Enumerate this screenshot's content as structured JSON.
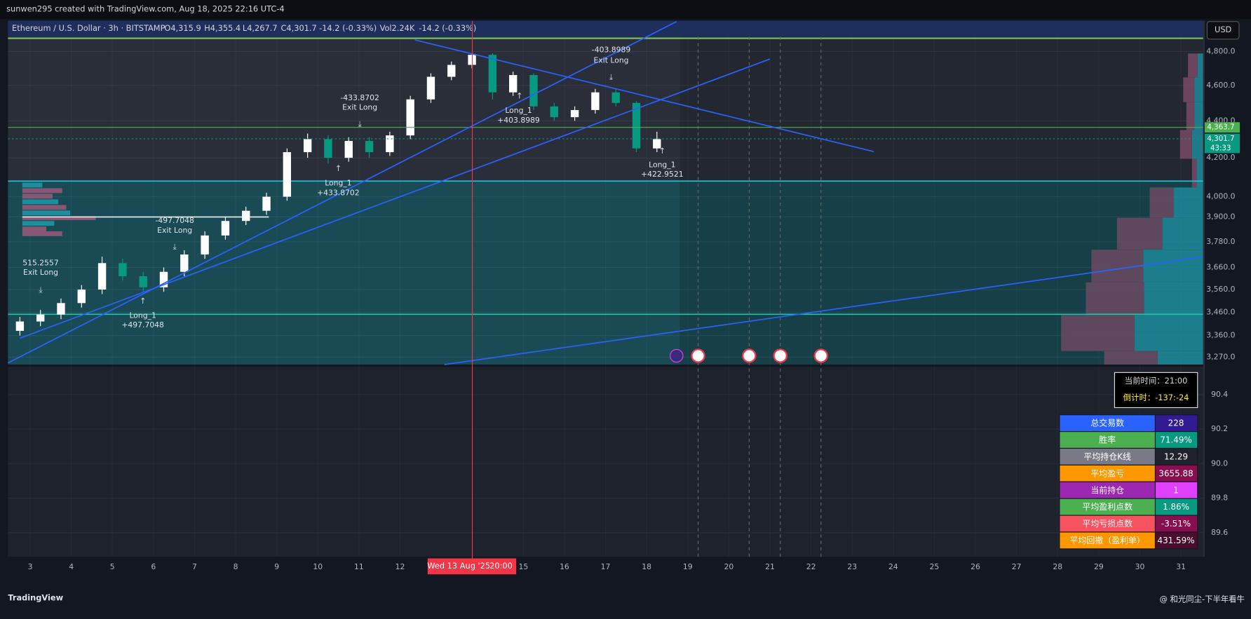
{
  "header": {
    "attribution": "sunwen295 created with TradingView.com, Aug 18, 2025 22:16 UTC-4",
    "symbol": "Ethereum / U.S. Dollar · 3h · BITSTAMP",
    "ohlc": [
      "O4,315.9",
      "H4,355.4",
      "L4,267.7",
      "C4,301.7",
      "-14.2 (-0.33%)"
    ],
    "volume": "Vol2.24K",
    "volume_change": "-14.2 (-0.33%)",
    "currency": "USD"
  },
  "chart": {
    "type": "candlestick",
    "log_scale": true,
    "grid": true,
    "xlim": [
      2.46,
      31.54
    ],
    "xticks": [
      3,
      4,
      5,
      6,
      7,
      8,
      9,
      10,
      11,
      12,
      15,
      16,
      17,
      18,
      19,
      20,
      21,
      22,
      23,
      24,
      25,
      26,
      27,
      28,
      29,
      30,
      31
    ],
    "ylim": [
      3240,
      4890
    ],
    "yticks": [
      {
        "value": 4800,
        "label": "4,800.0"
      },
      {
        "value": 4600,
        "label": "4,600.0"
      },
      {
        "value": 4400,
        "label": "4,400.0"
      },
      {
        "value": 4200,
        "label": "4,200.0"
      },
      {
        "value": 4000,
        "label": "4,000.0"
      },
      {
        "value": 3900,
        "label": "3,900.0"
      },
      {
        "value": 3780,
        "label": "3,780.0"
      },
      {
        "value": 3660,
        "label": "3,660.0"
      },
      {
        "value": 3560,
        "label": "3,560.0"
      },
      {
        "value": 3460,
        "label": "3,460.0"
      },
      {
        "value": 3360,
        "label": "3,360.0"
      },
      {
        "value": 3270,
        "label": "3,270.0"
      }
    ],
    "y2lim": [
      89.46,
      90.56
    ],
    "y2ticks": [
      90.4,
      90.2,
      {
        "value": 90,
        "label": "90.0"
      },
      89.8,
      89.6
    ],
    "up_color": "#ffffff",
    "down_color": "#089981",
    "candles": [
      {
        "x": 2.75,
        "open": 3380,
        "high": 3440,
        "low": 3360,
        "close": 3420
      },
      {
        "x": 3.25,
        "open": 3420,
        "high": 3470,
        "low": 3400,
        "close": 3450
      },
      {
        "x": 3.75,
        "open": 3450,
        "high": 3520,
        "low": 3430,
        "close": 3500
      },
      {
        "x": 4.25,
        "open": 3500,
        "high": 3580,
        "low": 3480,
        "close": 3560
      },
      {
        "x": 4.75,
        "open": 3560,
        "high": 3710,
        "low": 3540,
        "close": 3680
      },
      {
        "x": 5.25,
        "open": 3680,
        "high": 3700,
        "low": 3600,
        "close": 3620
      },
      {
        "x": 5.75,
        "open": 3620,
        "high": 3640,
        "low": 3550,
        "close": 3570
      },
      {
        "x": 6.25,
        "open": 3570,
        "high": 3660,
        "low": 3550,
        "close": 3640
      },
      {
        "x": 6.75,
        "open": 3640,
        "high": 3740,
        "low": 3620,
        "close": 3720
      },
      {
        "x": 7.25,
        "open": 3720,
        "high": 3830,
        "low": 3700,
        "close": 3810
      },
      {
        "x": 7.75,
        "open": 3810,
        "high": 3900,
        "low": 3790,
        "close": 3880
      },
      {
        "x": 8.25,
        "open": 3880,
        "high": 3950,
        "low": 3860,
        "close": 3930
      },
      {
        "x": 8.75,
        "open": 3930,
        "high": 4020,
        "low": 3910,
        "close": 4000
      },
      {
        "x": 9.25,
        "open": 4000,
        "high": 4250,
        "low": 3980,
        "close": 4230
      },
      {
        "x": 9.75,
        "open": 4230,
        "high": 4330,
        "low": 4200,
        "close": 4300
      },
      {
        "x": 10.25,
        "open": 4300,
        "high": 4320,
        "low": 4170,
        "close": 4200
      },
      {
        "x": 10.75,
        "open": 4200,
        "high": 4310,
        "low": 4180,
        "close": 4290
      },
      {
        "x": 11.25,
        "open": 4290,
        "high": 4310,
        "low": 4200,
        "close": 4230
      },
      {
        "x": 11.75,
        "open": 4230,
        "high": 4340,
        "low": 4210,
        "close": 4320
      },
      {
        "x": 12.25,
        "open": 4320,
        "high": 4540,
        "low": 4300,
        "close": 4520
      },
      {
        "x": 12.75,
        "open": 4520,
        "high": 4670,
        "low": 4500,
        "close": 4650
      },
      {
        "x": 13.25,
        "open": 4650,
        "high": 4740,
        "low": 4630,
        "close": 4720
      },
      {
        "x": 13.75,
        "open": 4720,
        "high": 4790,
        "low": 4700,
        "close": 4780
      },
      {
        "x": 14.25,
        "open": 4780,
        "high": 4790,
        "low": 4520,
        "close": 4560
      },
      {
        "x": 14.75,
        "open": 4560,
        "high": 4680,
        "low": 4540,
        "close": 4660
      },
      {
        "x": 15.25,
        "open": 4660,
        "high": 4670,
        "low": 4460,
        "close": 4480
      },
      {
        "x": 15.75,
        "open": 4480,
        "high": 4500,
        "low": 4400,
        "close": 4420
      },
      {
        "x": 16.25,
        "open": 4420,
        "high": 4480,
        "low": 4400,
        "close": 4460
      },
      {
        "x": 16.75,
        "open": 4460,
        "high": 4580,
        "low": 4440,
        "close": 4560
      },
      {
        "x": 17.25,
        "open": 4560,
        "high": 4580,
        "low": 4480,
        "close": 4500
      },
      {
        "x": 17.75,
        "open": 4500,
        "high": 4510,
        "low": 4230,
        "close": 4250
      },
      {
        "x": 18.25,
        "open": 4250,
        "high": 4340,
        "low": 4230,
        "close": 4300
      }
    ],
    "price_lines": [
      {
        "value": 4363.7,
        "label": "4,363.7",
        "color": "#4caf50"
      },
      {
        "value": 4301.7,
        "label": "4,301.7",
        "color": "#089981"
      }
    ],
    "countdown": "43:33",
    "crosshair_date": "Wed 13 Aug '25",
    "crosshair_time": "20:00",
    "annotations": [
      {
        "value": "-403.8989",
        "label": "Exit Long"
      },
      {
        "value": "-433.8702",
        "label": "Exit Long"
      },
      {
        "value": "-497.7048",
        "label": "Exit Long"
      },
      {
        "value": "515.2557",
        "label": "Exit Long"
      },
      {
        "label": "Long_1",
        "value": "+403.8989"
      },
      {
        "label": "Long_1",
        "value": "+433.8702"
      },
      {
        "label": "Long_1",
        "value": "+497.7048"
      },
      {
        "label": "Long_1",
        "value": "+422.9521"
      }
    ]
  },
  "clock": {
    "time": "当前时间：21:00",
    "countdown": "倒计时：-137:-24"
  },
  "stats": {
    "rows": [
      {
        "label": "总交易数",
        "value": "228",
        "label_color": "#2962ff",
        "value_color": "#311b92"
      },
      {
        "label": "胜率",
        "value": "71.49%",
        "label_color": "#4caf50",
        "value_color": "#089981"
      },
      {
        "label": "平均持仓K线",
        "value": "12.29",
        "label_color": "#787b86",
        "value_color": "#1e222d"
      },
      {
        "label": "平均盈亏",
        "value": "3655.88",
        "label_color": "#ff9800",
        "value_color": "#880e4f"
      },
      {
        "label": "当前持仓",
        "value": "1",
        "label_color": "#9c27b0",
        "value_color": "#e040fb"
      },
      {
        "label": "平均盈利点数",
        "value": "1.86%",
        "label_color": "#4caf50",
        "value_color": "#089981"
      },
      {
        "label": "平均亏损点数",
        "value": "-3.51%",
        "label_color": "#f7525f",
        "value_color": "#880e4f"
      },
      {
        "label": "平均回撤（盈利单）",
        "value": "431.59%",
        "label_color": "#ff9800",
        "value_color": "#4a0d2e"
      }
    ]
  },
  "footer": {
    "logo": "TradingView",
    "watermark": "@ 和光同尘-下半年看牛"
  }
}
